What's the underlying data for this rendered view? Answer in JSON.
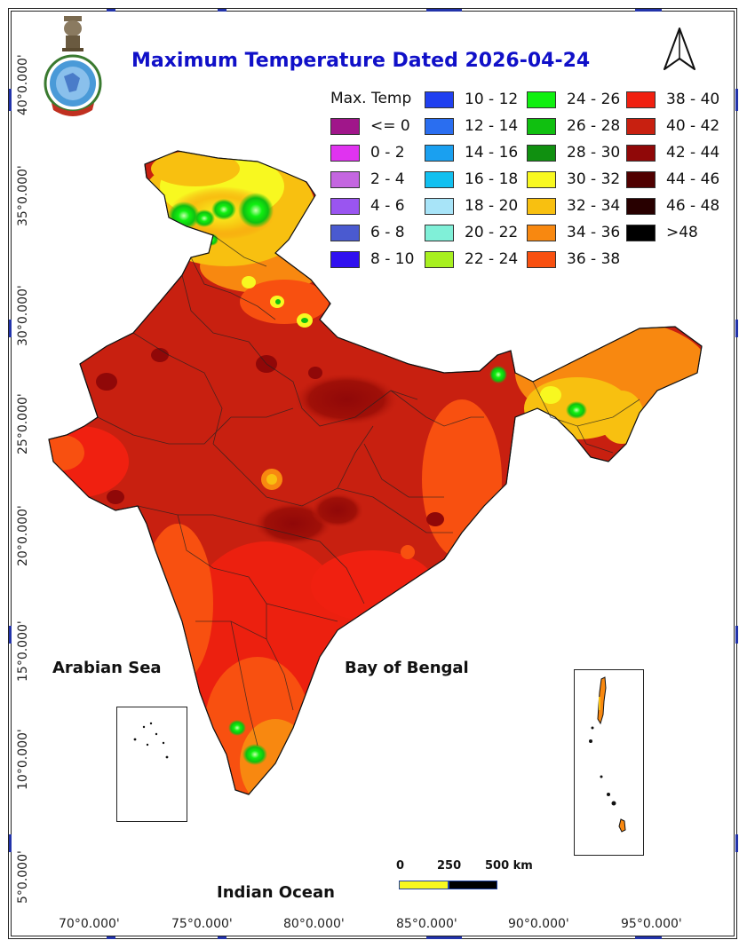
{
  "title": "Maximum Temperature Dated 2026-04-24",
  "legend": {
    "title": "Max. Temp",
    "columns": [
      [
        {
          "label": "<= 0",
          "color": "#a0168a"
        },
        {
          "label": "0 - 2",
          "color": "#e033f0"
        },
        {
          "label": "2 - 4",
          "color": "#c466e0"
        },
        {
          "label": "4 - 6",
          "color": "#9a55f0"
        },
        {
          "label": "6 - 8",
          "color": "#4a5ad0"
        },
        {
          "label": "8 - 10",
          "color": "#3010f0"
        }
      ],
      [
        {
          "label": "10 - 12",
          "color": "#2040f0"
        },
        {
          "label": "12 - 14",
          "color": "#2a6ef0"
        },
        {
          "label": "14 - 16",
          "color": "#1aa0f0"
        },
        {
          "label": "16 - 18",
          "color": "#12c0f0"
        },
        {
          "label": "18 - 20",
          "color": "#a8e4f8"
        },
        {
          "label": "20 - 22",
          "color": "#80f0d8"
        },
        {
          "label": "22 - 24",
          "color": "#a8f020"
        }
      ],
      [
        {
          "label": "24 - 26",
          "color": "#10f010"
        },
        {
          "label": "26 - 28",
          "color": "#10c010"
        },
        {
          "label": "28 - 30",
          "color": "#109010"
        },
        {
          "label": "30 - 32",
          "color": "#f8f820"
        },
        {
          "label": "32 - 34",
          "color": "#f8c010"
        },
        {
          "label": "34 - 36",
          "color": "#f88810"
        },
        {
          "label": "36 - 38",
          "color": "#f85010"
        }
      ],
      [
        {
          "label": "38 - 40",
          "color": "#f02010"
        },
        {
          "label": "40 - 42",
          "color": "#c82010"
        },
        {
          "label": "42 - 44",
          "color": "#900808"
        },
        {
          "label": "44 - 46",
          "color": "#500000"
        },
        {
          "label": "46 - 48",
          "color": "#280000"
        },
        {
          "label": ">48",
          "color": "#000000"
        }
      ]
    ]
  },
  "latitude_labels": [
    "40°0.000'",
    "35°0.000'",
    "30°0.000'",
    "25°0.000'",
    "20°0.000'",
    "15°0.000'",
    "10°0.000'",
    "5°0.000'"
  ],
  "longitude_labels": [
    "70°0.000'",
    "75°0.000'",
    "80°0.000'",
    "85°0.000'",
    "90°0.000'",
    "95°0.000'"
  ],
  "seas": {
    "arabian": "Arabian Sea",
    "bengal": "Bay of Bengal",
    "indian": "Indian Ocean"
  },
  "scale_bar": {
    "labels": [
      "0",
      "250",
      "500 km"
    ],
    "colors": [
      "#f8f820",
      "#000000"
    ]
  },
  "colors": {
    "title": "#1010c8",
    "frame_tick": "#2233aa",
    "base_fill": "#c82010"
  }
}
